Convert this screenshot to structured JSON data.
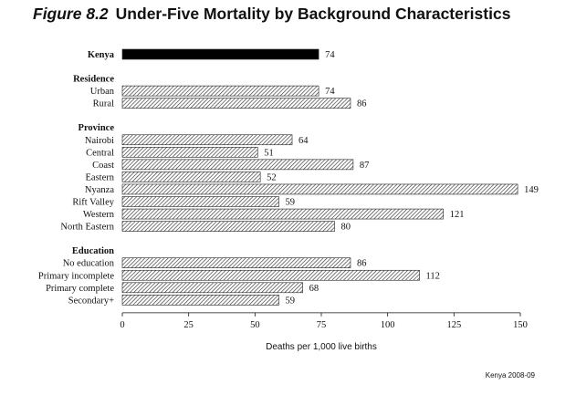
{
  "title": {
    "figure_label": "Figure 8.2",
    "text": "Under-Five Mortality by Background Characteristics"
  },
  "source_note": "Kenya 2008-09",
  "chart_data": {
    "type": "bar",
    "orientation": "horizontal",
    "xlabel": "Deaths per 1,000 live births",
    "xlim": [
      0,
      150
    ],
    "xticks": [
      0,
      25,
      50,
      75,
      100,
      125,
      150
    ],
    "grid": false,
    "colors": {
      "national": "#000000",
      "hatch_stroke": "#333333",
      "bar_border": "#222222"
    },
    "groups": [
      {
        "label": "",
        "items": [
          {
            "label": "Kenya",
            "value": 74,
            "bold": true,
            "solid": true
          }
        ]
      },
      {
        "label": "Residence",
        "items": [
          {
            "label": "Urban",
            "value": 74
          },
          {
            "label": "Rural",
            "value": 86
          }
        ]
      },
      {
        "label": "Province",
        "items": [
          {
            "label": "Nairobi",
            "value": 64
          },
          {
            "label": "Central",
            "value": 51
          },
          {
            "label": "Coast",
            "value": 87
          },
          {
            "label": "Eastern",
            "value": 52
          },
          {
            "label": "Nyanza",
            "value": 149
          },
          {
            "label": "Rift Valley",
            "value": 59
          },
          {
            "label": "Western",
            "value": 121
          },
          {
            "label": "North Eastern",
            "value": 80
          }
        ]
      },
      {
        "label": "Education",
        "items": [
          {
            "label": "No education",
            "value": 86
          },
          {
            "label": "Primary incomplete",
            "value": 112
          },
          {
            "label": "Primary complete",
            "value": 68
          },
          {
            "label": "Secondary+",
            "value": 59
          }
        ]
      }
    ]
  }
}
